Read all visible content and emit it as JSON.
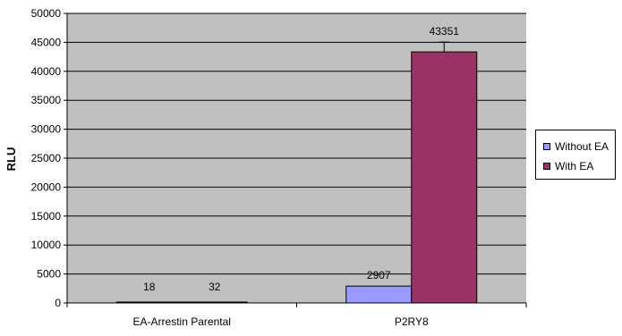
{
  "chart_data": {
    "type": "bar",
    "categories": [
      "EA-Arrestin Parental",
      "P2RY8"
    ],
    "series": [
      {
        "name": "Without EA",
        "values": [
          18,
          2907
        ],
        "color": "#9999ff",
        "error": [
          null,
          null
        ]
      },
      {
        "name": "With EA",
        "values": [
          32,
          43351
        ],
        "color": "#993366",
        "error": [
          null,
          1700
        ]
      }
    ],
    "data_labels": [
      [
        "18",
        "2907"
      ],
      [
        "32",
        "43351"
      ]
    ],
    "ylabel": "RLU",
    "xlabel": "",
    "ylim": [
      0,
      50000
    ],
    "yticks": [
      0,
      5000,
      10000,
      15000,
      20000,
      25000,
      30000,
      35000,
      40000,
      45000,
      50000
    ],
    "grid": true,
    "plot_background": "#c0c0c0",
    "legend_position": "right"
  }
}
